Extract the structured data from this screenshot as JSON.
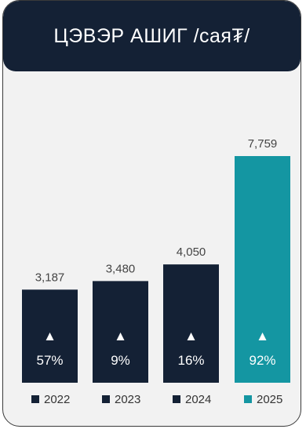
{
  "header": {
    "title": "ЦЭВЭР АШИГ /сая₮/"
  },
  "chart_data": {
    "type": "bar",
    "categories": [
      "2022",
      "2023",
      "2024",
      "2025"
    ],
    "values": [
      3187,
      3480,
      4050,
      7759
    ],
    "value_labels": [
      "3,187",
      "3,480",
      "4,050",
      "7,759"
    ],
    "growth_labels": [
      "57%",
      "9%",
      "16%",
      "92%"
    ],
    "growth_marker": "▲",
    "colors": [
      "#142135",
      "#142135",
      "#142135",
      "#1496a2"
    ],
    "legend": [
      "2022",
      "2023",
      "2024",
      "2025"
    ],
    "legend_position": "bottom",
    "grid": false
  }
}
